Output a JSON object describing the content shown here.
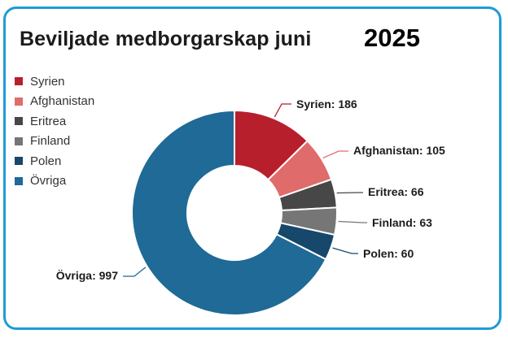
{
  "title": "Beviljade medborgarskap juni",
  "year": "2025",
  "chart_data": {
    "type": "pie",
    "donut": true,
    "legend_position": "top-left",
    "series": [
      {
        "name": "Syrien",
        "value": 186,
        "label": "Syrien: 186",
        "color": "#b81f2d"
      },
      {
        "name": "Afghanistan",
        "value": 105,
        "label": "Afghanistan: 105",
        "color": "#df6c6a"
      },
      {
        "name": "Eritrea",
        "value": 66,
        "label": "Eritrea: 66",
        "color": "#474747"
      },
      {
        "name": "Finland",
        "value": 63,
        "label": "Finland: 63",
        "color": "#767676"
      },
      {
        "name": "Polen",
        "value": 60,
        "label": "Polen: 60",
        "color": "#17476b"
      },
      {
        "name": "Övriga",
        "value": 997,
        "label": "Övriga: 997",
        "color": "#1f6a96"
      }
    ]
  }
}
